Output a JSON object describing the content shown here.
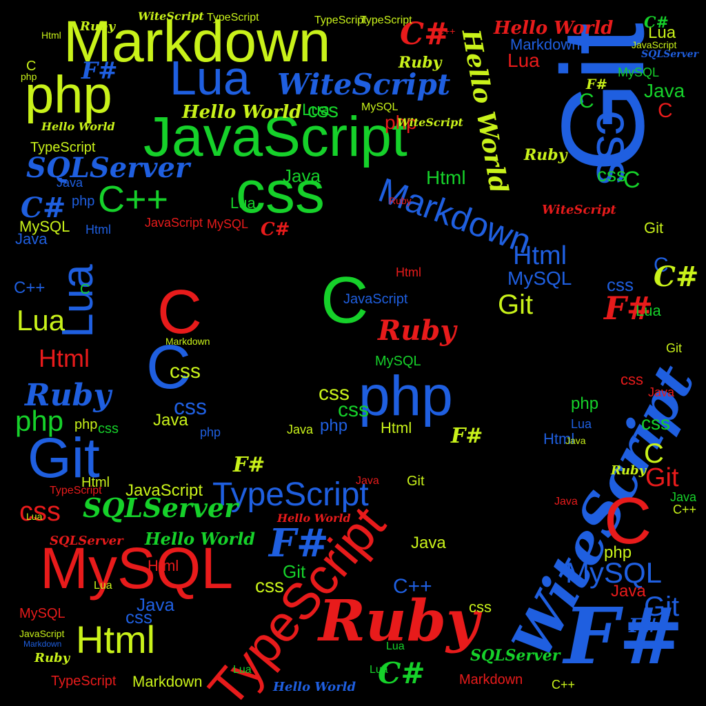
{
  "palette": {
    "background": "#000000",
    "blue": "#1f5fe0",
    "green": "#16d12a",
    "lime": "#c9f21a",
    "red": "#e81b1b"
  },
  "words": {
    "git": "Git",
    "markdown": "Markdown",
    "php": "php",
    "lua": "Lua",
    "writescript": "WiteScript",
    "javascript": "JavaScript",
    "css": "css",
    "sqlserver": "SQLServer",
    "csharp": "C#",
    "fsharp": "F#",
    "cpp": "C++",
    "c": "C",
    "html": "Html",
    "mysql": "MySQL",
    "ruby": "Ruby",
    "typescript": "TypeScript",
    "java": "Java",
    "hello_world": "Hello World"
  }
}
